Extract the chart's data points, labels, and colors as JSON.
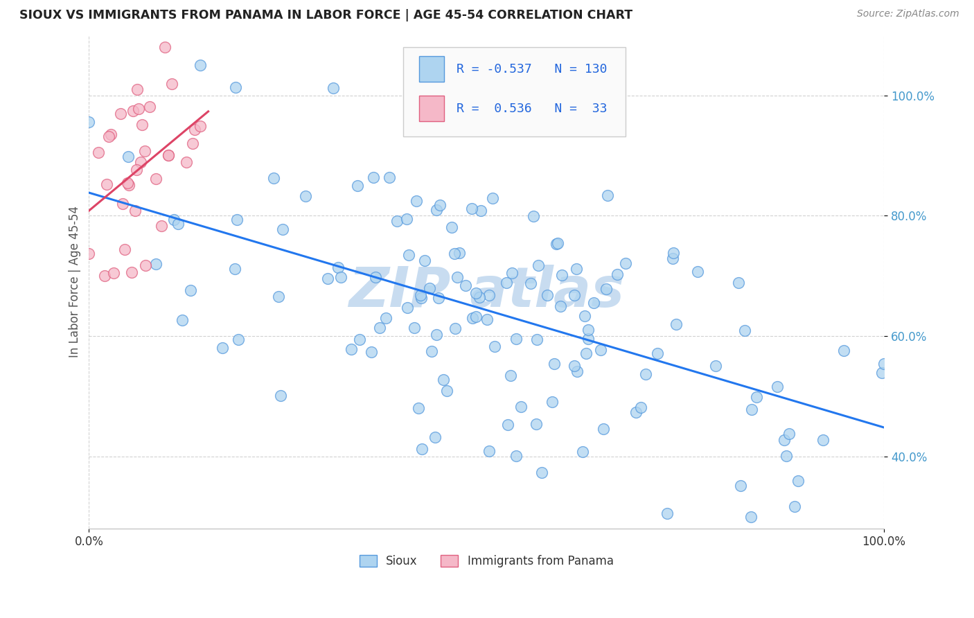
{
  "title": "SIOUX VS IMMIGRANTS FROM PANAMA IN LABOR FORCE | AGE 45-54 CORRELATION CHART",
  "source": "Source: ZipAtlas.com",
  "ylabel": "In Labor Force | Age 45-54",
  "legend_blue_label": "Sioux",
  "legend_pink_label": "Immigrants from Panama",
  "R_blue": -0.537,
  "N_blue": 130,
  "R_pink": 0.536,
  "N_pink": 33,
  "blue_fill": "#AED4F0",
  "blue_edge": "#5599DD",
  "pink_fill": "#F5B8C8",
  "pink_edge": "#E06080",
  "blue_line": "#2277EE",
  "pink_line": "#DD4466",
  "bg_color": "#FFFFFF",
  "watermark_color": "#C8DCF0",
  "xlim": [
    0.0,
    1.0
  ],
  "ylim": [
    0.28,
    1.1
  ],
  "yticks": [
    0.4,
    0.6,
    0.8,
    1.0
  ],
  "ytick_labels": [
    "40.0%",
    "60.0%",
    "80.0%",
    "100.0%"
  ],
  "xticks": [
    0.0,
    1.0
  ],
  "xtick_labels": [
    "0.0%",
    "100.0%"
  ],
  "seed_blue": 7,
  "seed_pink": 3
}
